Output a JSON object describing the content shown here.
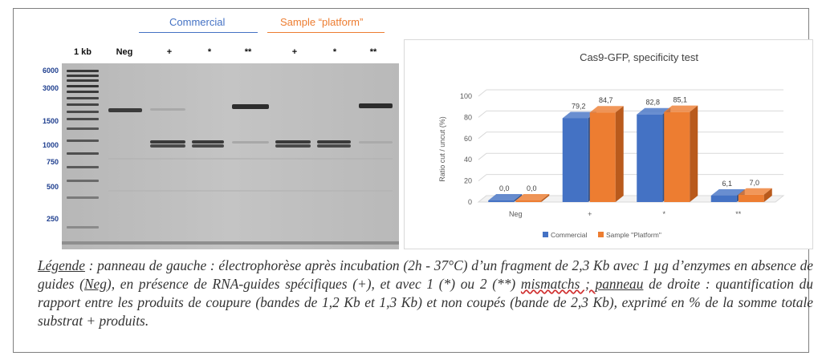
{
  "gel": {
    "group_commercial": "Commercial",
    "group_platform": "Sample “platform”",
    "group_commercial_color": "#4472c4",
    "group_platform_color": "#ed7d31",
    "lane_labels": [
      "1 kb",
      "Neg",
      "+",
      "*",
      "**",
      "+",
      "*",
      "**"
    ],
    "ladder_labels": [
      "6000",
      "3000",
      "1500",
      "1000",
      "750",
      "500",
      "250"
    ]
  },
  "chart_data": {
    "type": "bar",
    "title": "Cas9-GFP, specificity test",
    "ylabel": "Ratio cut / uncut (%)",
    "xlabel": "",
    "categories": [
      "Neg",
      "+",
      "*",
      "**"
    ],
    "series": [
      {
        "name": "Commercial",
        "values": [
          0.0,
          79.2,
          82.8,
          6.1
        ],
        "labels": [
          "0,0",
          "79,2",
          "82,8",
          "6,1"
        ],
        "color": "#4472c4",
        "side_color": "#2f528f"
      },
      {
        "name": "Sample \"Platform\"",
        "values": [
          0.0,
          84.7,
          85.1,
          7.0
        ],
        "labels": [
          "0,0",
          "84,7",
          "85,1",
          "7,0"
        ],
        "color": "#ed7d31",
        "side_color": "#b95a1c"
      }
    ],
    "ylim": [
      0,
      100
    ],
    "yticks": [
      0,
      20,
      40,
      60,
      80,
      100
    ],
    "legend_position": "bottom",
    "grid": true
  },
  "caption": {
    "legende_word": "Légende",
    "part1": " : panneau de gauche : électrophorèse après incubation (2h - 37°C) d’un fragment de 2,3 Kb avec 1 µg d’enzymes en absence de guides (",
    "neg_word": "Neg",
    "part2": "), en présence de RNA-guides spécifiques (+), et avec 1 (*) ou 2 (**) ",
    "mismatch_word": "mismatchs ; ",
    "part3": " ",
    "panneau_word": "panneau",
    "part4": " de droite : quantification du rapport entre les produits de coupure (bandes de 1,2 Kb et 1,3 Kb) et non coupés (bande de 2,3 Kb), exprimé en % de la somme totale substrat + produits."
  }
}
